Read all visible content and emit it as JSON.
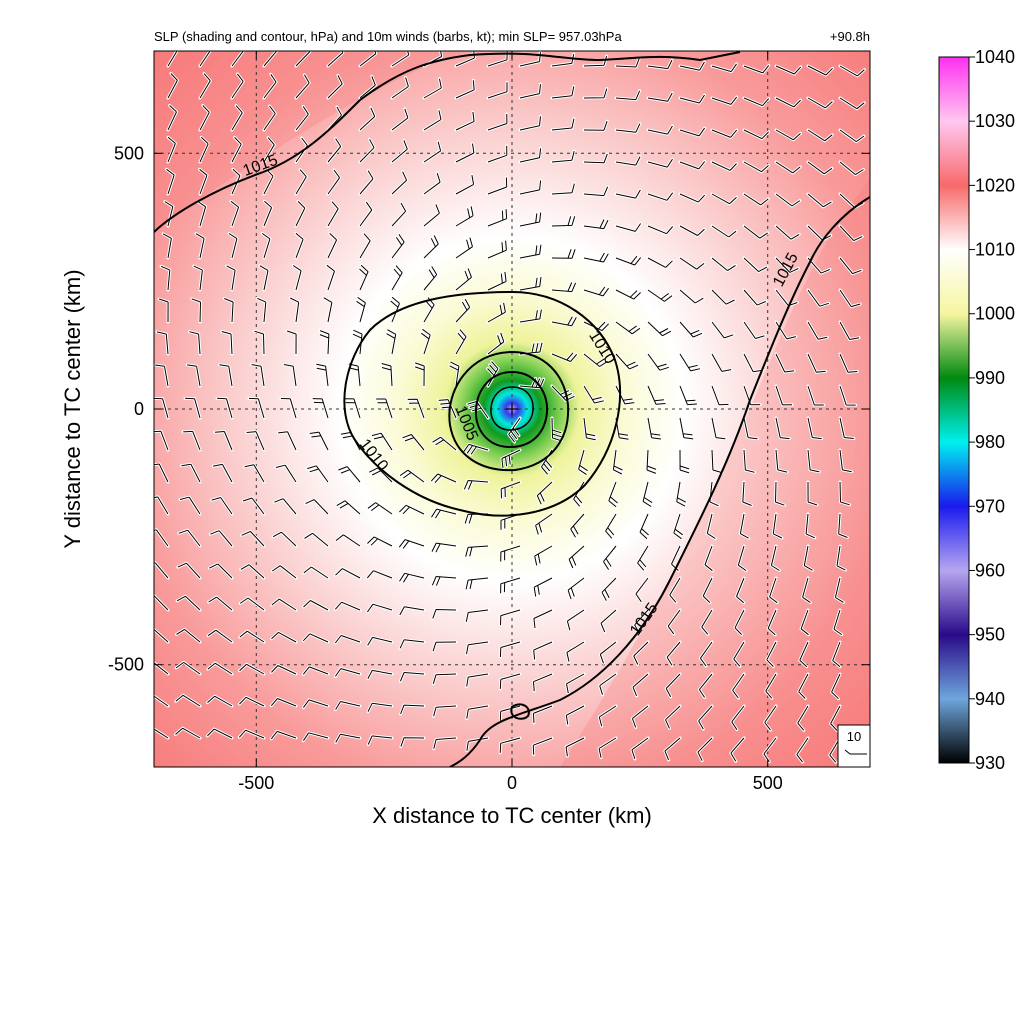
{
  "chart_data": {
    "type": "heatmap",
    "title": "SLP (shading and contour, hPa) and 10m winds (barbs, kt); min SLP= 957.03hPa",
    "forecast_hour": "+90.8h",
    "xlabel": "X distance to TC center (km)",
    "ylabel": "Y distance to TC center (km)",
    "xlim": [
      -700,
      700
    ],
    "ylim": [
      -700,
      700
    ],
    "x_ticks": [
      -500,
      0,
      500
    ],
    "y_ticks": [
      -500,
      0,
      500
    ],
    "x_tick_labels": [
      "-500",
      "0",
      "500"
    ],
    "y_tick_labels": [
      "-500",
      "0",
      "500"
    ],
    "grid": "dashed",
    "min_slp_hpa": 957.03,
    "contour_levels": [
      1005,
      1010,
      1015
    ],
    "contour_labels": [
      "1005",
      "1010",
      "1015"
    ],
    "colorbar": {
      "min": 930,
      "max": 1040,
      "ticks": [
        930,
        940,
        950,
        960,
        970,
        980,
        990,
        1000,
        1010,
        1020,
        1030,
        1040
      ],
      "tick_labels": [
        "930",
        "940",
        "950",
        "960",
        "970",
        "980",
        "990",
        "1000",
        "1010",
        "1020",
        "1030",
        "1040"
      ],
      "stops": [
        {
          "value": 930,
          "color": "#000000"
        },
        {
          "value": 940,
          "color": "#6ea6dc"
        },
        {
          "value": 950,
          "color": "#2a0a8a"
        },
        {
          "value": 960,
          "color": "#b6a6f0"
        },
        {
          "value": 970,
          "color": "#1a1aee"
        },
        {
          "value": 980,
          "color": "#00f0ee"
        },
        {
          "value": 990,
          "color": "#008a10"
        },
        {
          "value": 1000,
          "color": "#f6f6a0"
        },
        {
          "value": 1010,
          "color": "#ffffff"
        },
        {
          "value": 1020,
          "color": "#f86a6a"
        },
        {
          "value": 1030,
          "color": "#ffc8f0"
        },
        {
          "value": 1040,
          "color": "#ff30f0"
        }
      ]
    },
    "wind_reference": {
      "label": "10",
      "units": "kt"
    }
  }
}
